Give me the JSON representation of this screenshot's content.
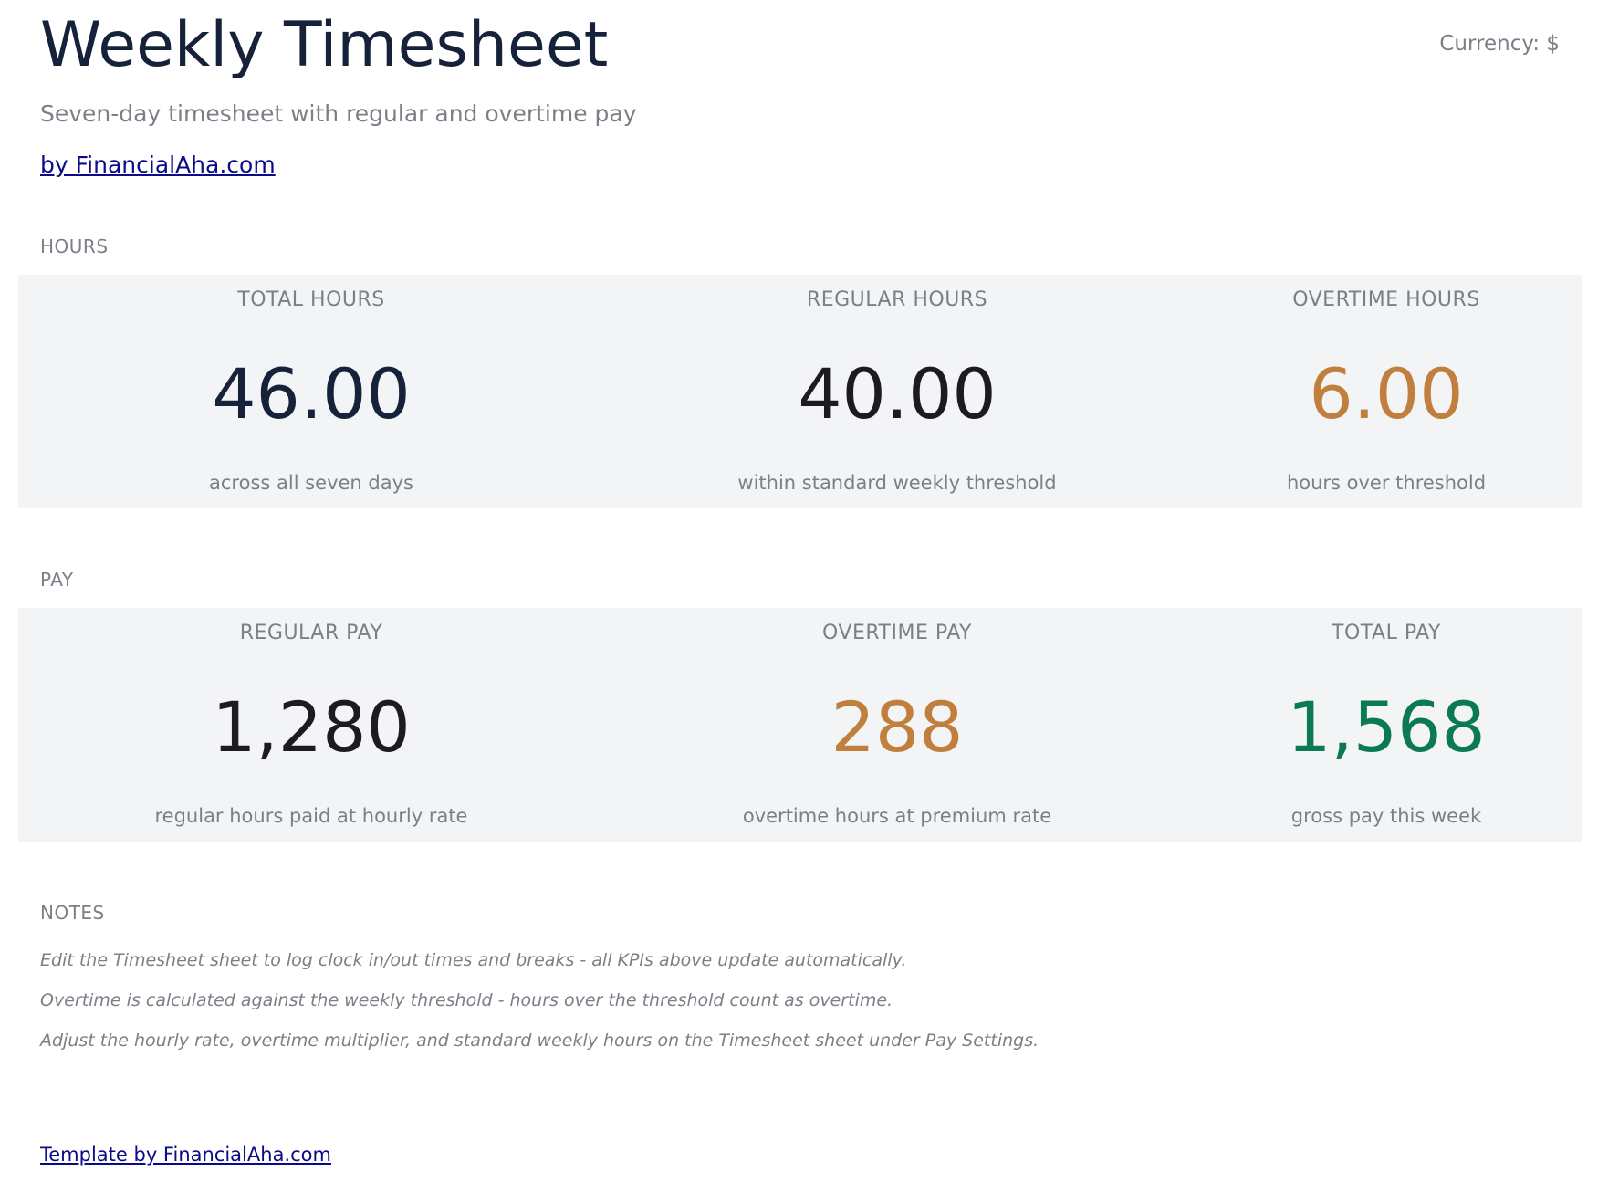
{
  "header": {
    "title": "Weekly Timesheet",
    "currency": "Currency: $",
    "subtitle": "Seven-day timesheet with regular and overtime pay",
    "byline": "by FinancialAha.com"
  },
  "hours": {
    "section_label": "HOURS",
    "kpis": [
      {
        "label": "TOTAL HOURS",
        "value": "46.00",
        "sub": "across all seven days",
        "color": "#16213a"
      },
      {
        "label": "REGULAR HOURS",
        "value": "40.00",
        "sub": "within standard weekly threshold",
        "color": "#1c1c1e"
      },
      {
        "label": "OVERTIME HOURS",
        "value": "6.00",
        "sub": "hours over threshold",
        "color": "#c17f3e"
      }
    ]
  },
  "pay": {
    "section_label": "PAY",
    "kpis": [
      {
        "label": "REGULAR PAY",
        "value": "1,280",
        "sub": "regular hours paid at hourly rate",
        "color": "#1c1c1e"
      },
      {
        "label": "OVERTIME PAY",
        "value": "288",
        "sub": "overtime hours at premium rate",
        "color": "#c17f3e"
      },
      {
        "label": "TOTAL PAY",
        "value": "1,568",
        "sub": "gross pay this week",
        "color": "#0b7a52"
      }
    ]
  },
  "notes": {
    "section_label": "NOTES",
    "items": [
      "Edit the Timesheet sheet to log clock in/out times and breaks - all KPIs above update automatically.",
      "Overtime is calculated against the weekly threshold - hours over the threshold count as overtime.",
      "Adjust the hourly rate, overtime multiplier, and standard weekly hours on the Timesheet sheet under Pay Settings."
    ]
  },
  "footer": {
    "link": "Template by FinancialAha.com"
  }
}
